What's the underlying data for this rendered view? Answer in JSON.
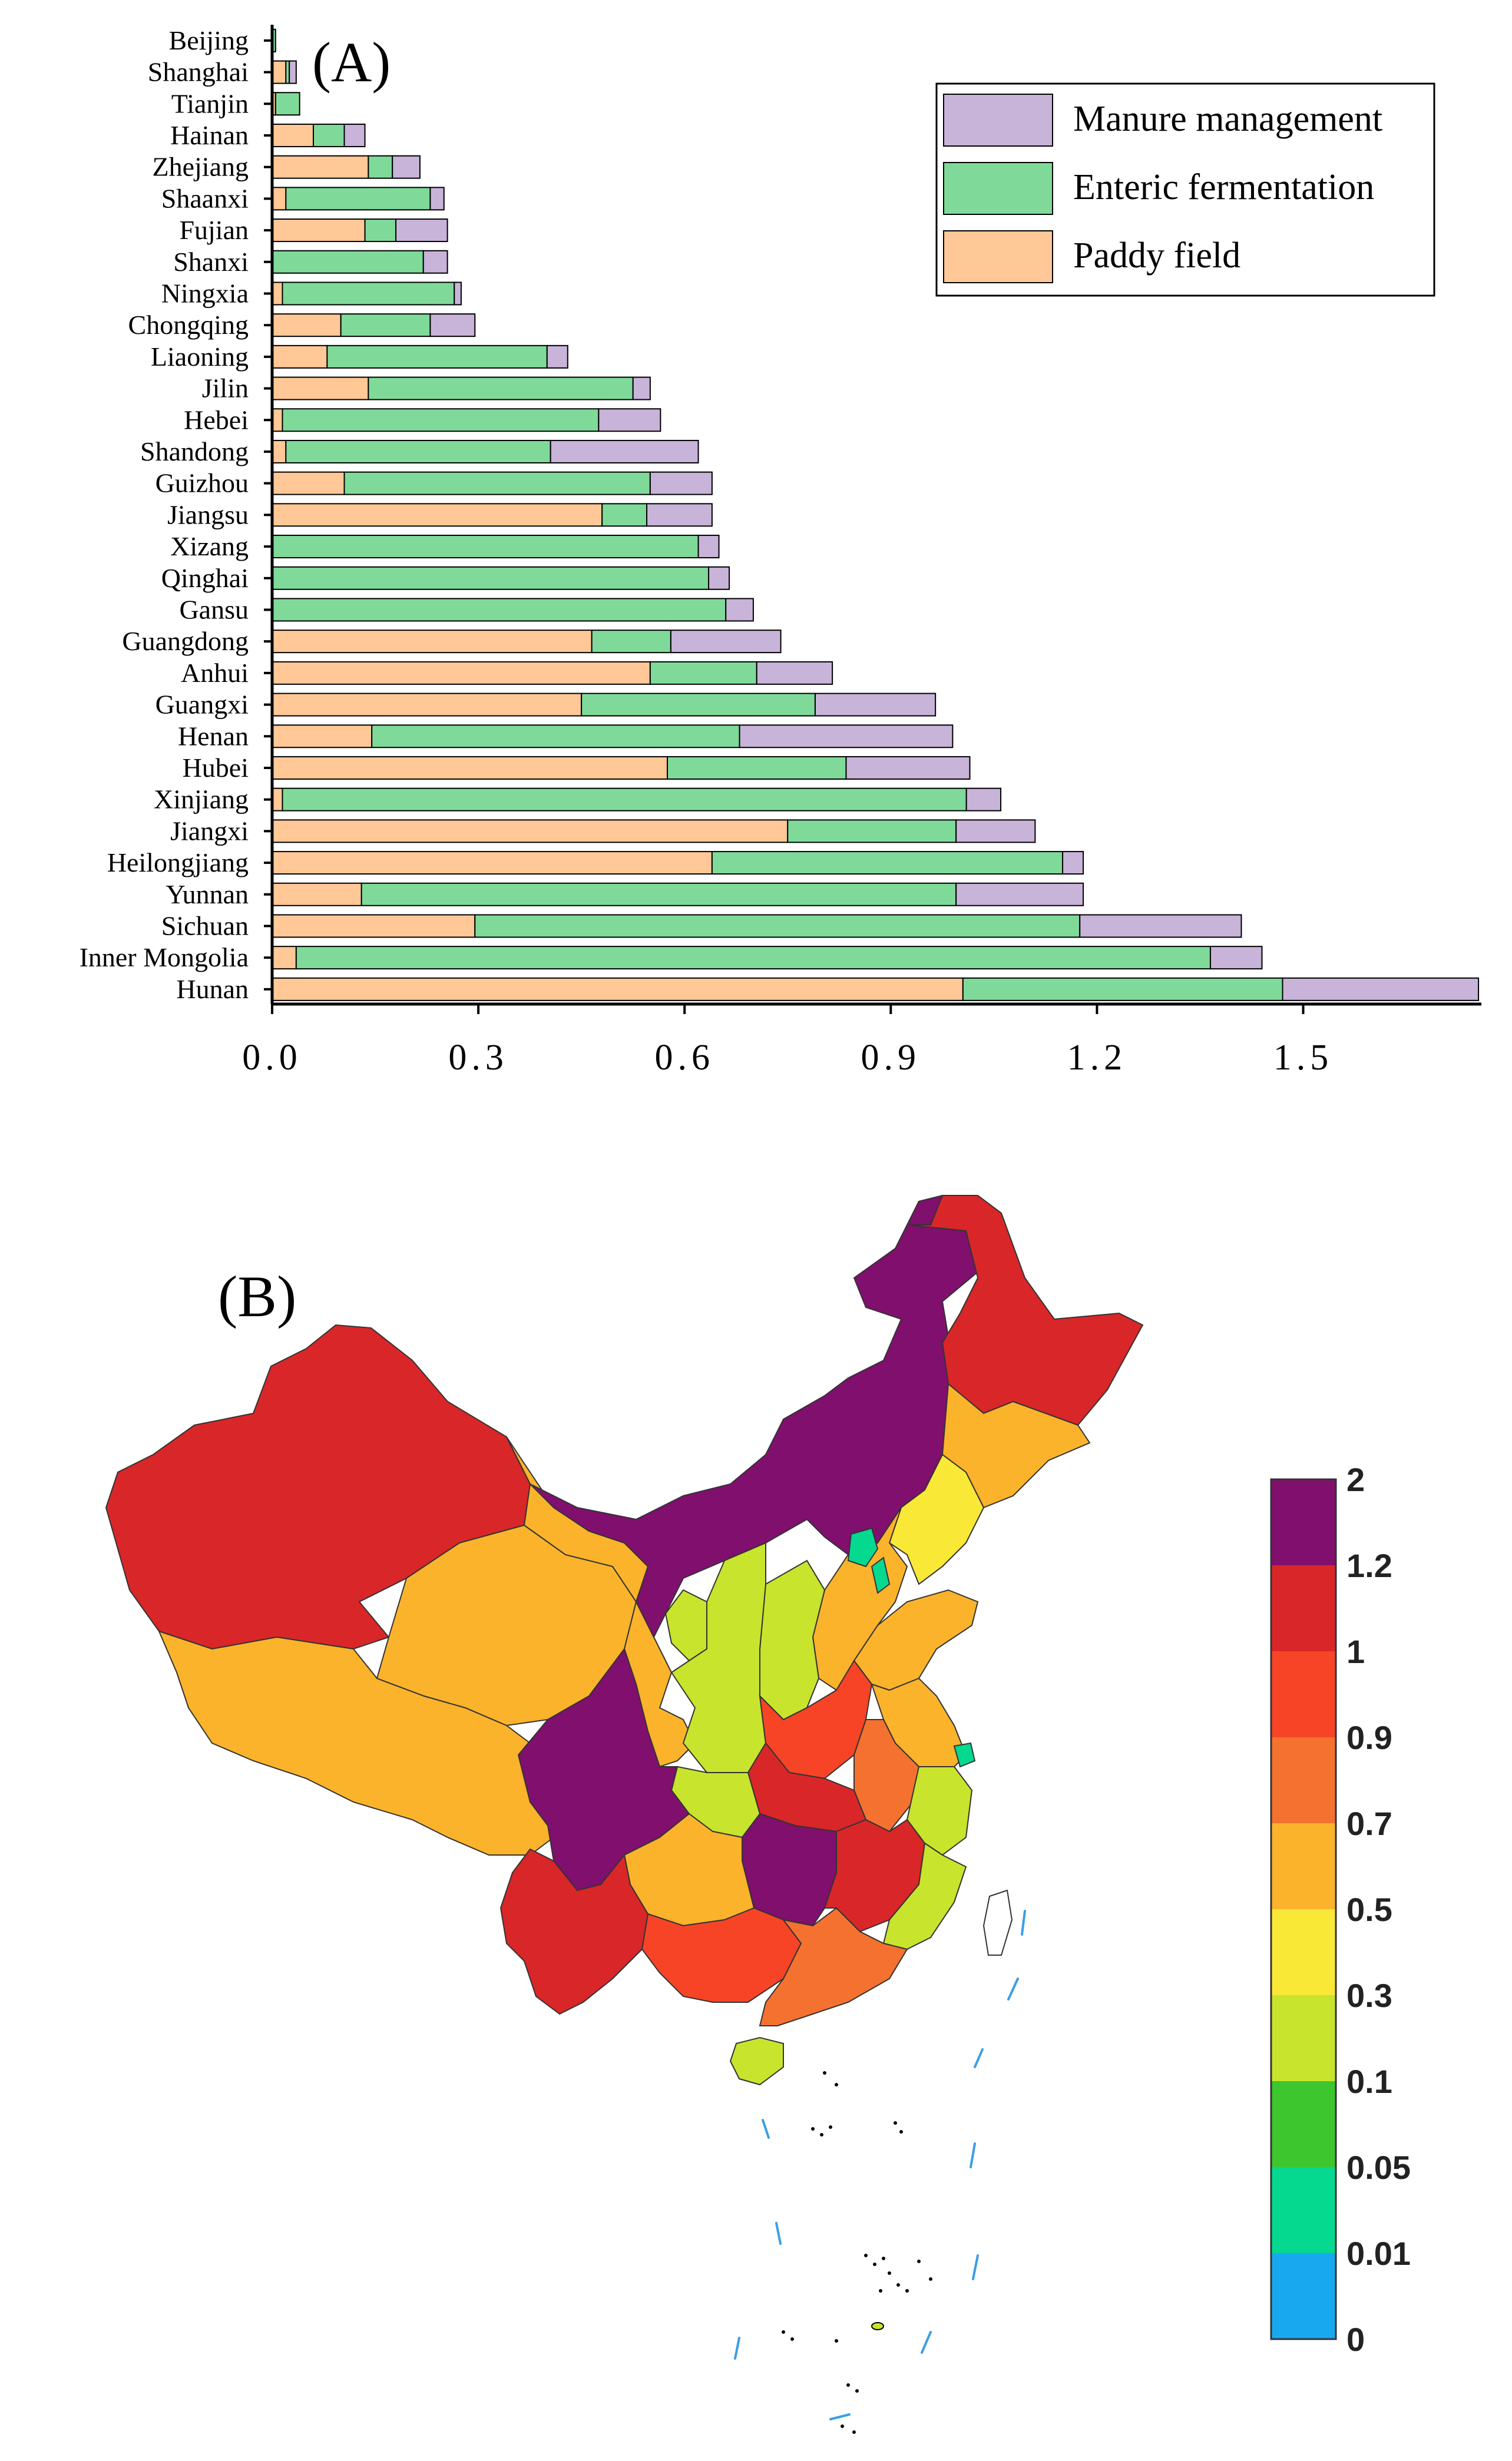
{
  "chart_data": [
    {
      "type": "bar",
      "orientation": "horizontal",
      "stacked": true,
      "panel_label": "(A)",
      "title": "",
      "xlabel": "",
      "ylabel": "",
      "xlim": [
        0,
        1.76
      ],
      "xticks": [
        0.0,
        0.3,
        0.6,
        0.9,
        1.2,
        1.5
      ],
      "xtick_labels": [
        "0.0",
        "0.3",
        "0.6",
        "0.9",
        "1.2",
        "1.5"
      ],
      "legend_position": "top-right",
      "categories": [
        "Beijing",
        "Shanghai",
        "Tianjin",
        "Hainan",
        "Zhejiang",
        "Shaanxi",
        "Fujian",
        "Shanxi",
        "Ningxia",
        "Chongqing",
        "Liaoning",
        "Jilin",
        "Hebei",
        "Shandong",
        "Guizhou",
        "Jiangsu",
        "Xizang",
        "Qinghai",
        "Gansu",
        "Guangdong",
        "Anhui",
        "Guangxi",
        "Henan",
        "Hubei",
        "Xinjiang",
        "Jiangxi",
        "Heilongjiang",
        "Yunnan",
        "Sichuan",
        "Inner Mongolia",
        "Hunan"
      ],
      "series": [
        {
          "name": "Paddy field",
          "color": "#FFC896",
          "values": [
            0.0,
            0.02,
            0.005,
            0.06,
            0.14,
            0.02,
            0.135,
            0.0,
            0.015,
            0.1,
            0.08,
            0.14,
            0.015,
            0.02,
            0.105,
            0.48,
            0.0,
            0.0,
            0.0,
            0.465,
            0.55,
            0.45,
            0.145,
            0.575,
            0.015,
            0.75,
            0.64,
            0.13,
            0.295,
            0.035,
            1.005
          ]
        },
        {
          "name": "Enteric fermentation",
          "color": "#7FDA9A",
          "values": [
            0.005,
            0.005,
            0.035,
            0.045,
            0.035,
            0.21,
            0.045,
            0.22,
            0.25,
            0.13,
            0.32,
            0.385,
            0.46,
            0.385,
            0.445,
            0.065,
            0.62,
            0.635,
            0.66,
            0.115,
            0.155,
            0.34,
            0.535,
            0.26,
            0.995,
            0.245,
            0.51,
            0.865,
            0.88,
            1.33,
            0.465
          ]
        },
        {
          "name": "Manure management",
          "color": "#C8B3D9",
          "values": [
            0.0,
            0.01,
            0.0,
            0.03,
            0.04,
            0.02,
            0.075,
            0.035,
            0.01,
            0.065,
            0.03,
            0.025,
            0.09,
            0.215,
            0.09,
            0.095,
            0.03,
            0.03,
            0.04,
            0.16,
            0.11,
            0.175,
            0.31,
            0.18,
            0.05,
            0.115,
            0.03,
            0.185,
            0.235,
            0.075,
            0.285
          ]
        }
      ]
    },
    {
      "type": "choropleth",
      "panel_label": "(B)",
      "legend_position": "right",
      "colorbar": {
        "labels": [
          "2",
          "1.2",
          "1",
          "0.9",
          "0.7",
          "0.5",
          "0.3",
          "0.1",
          "0.05",
          "0.01",
          "0"
        ],
        "colors": [
          "#800F6E",
          "#D92628",
          "#F74426",
          "#F47130",
          "#FBB32B",
          "#FAE837",
          "#C8E42D",
          "#3DC62E",
          "#05D98F",
          "#18A8F0"
        ]
      },
      "regions": [
        {
          "name": "Xinjiang",
          "color": "#D92628"
        },
        {
          "name": "Xizang",
          "color": "#FBB32B"
        },
        {
          "name": "Qinghai",
          "color": "#FBB32B"
        },
        {
          "name": "Gansu",
          "color": "#FBB32B"
        },
        {
          "name": "Inner Mongolia",
          "color": "#800F6E"
        },
        {
          "name": "Heilongjiang",
          "color": "#D92628"
        },
        {
          "name": "Jilin",
          "color": "#FBB32B"
        },
        {
          "name": "Liaoning",
          "color": "#FAE837"
        },
        {
          "name": "Hebei",
          "color": "#FBB32B"
        },
        {
          "name": "Beijing",
          "color": "#05D98F"
        },
        {
          "name": "Tianjin",
          "color": "#05D98F"
        },
        {
          "name": "Shanxi",
          "color": "#C8E42D"
        },
        {
          "name": "Shaanxi",
          "color": "#C8E42D"
        },
        {
          "name": "Ningxia",
          "color": "#C8E42D"
        },
        {
          "name": "Shandong",
          "color": "#FBB32B"
        },
        {
          "name": "Henan",
          "color": "#F74426"
        },
        {
          "name": "Jiangsu",
          "color": "#FBB32B"
        },
        {
          "name": "Shanghai",
          "color": "#05D98F"
        },
        {
          "name": "Anhui",
          "color": "#F47130"
        },
        {
          "name": "Zhejiang",
          "color": "#C8E42D"
        },
        {
          "name": "Sichuan",
          "color": "#800F6E"
        },
        {
          "name": "Chongqing",
          "color": "#C8E42D"
        },
        {
          "name": "Hubei",
          "color": "#D92628"
        },
        {
          "name": "Hunan",
          "color": "#800F6E"
        },
        {
          "name": "Jiangxi",
          "color": "#D92628"
        },
        {
          "name": "Fujian",
          "color": "#C8E42D"
        },
        {
          "name": "Guizhou",
          "color": "#FBB32B"
        },
        {
          "name": "Yunnan",
          "color": "#D92628"
        },
        {
          "name": "Guangxi",
          "color": "#F74426"
        },
        {
          "name": "Guangdong",
          "color": "#F47130"
        },
        {
          "name": "Hainan",
          "color": "#C8E42D"
        },
        {
          "name": "Taiwan",
          "color": "#FFFFFF"
        }
      ]
    }
  ]
}
